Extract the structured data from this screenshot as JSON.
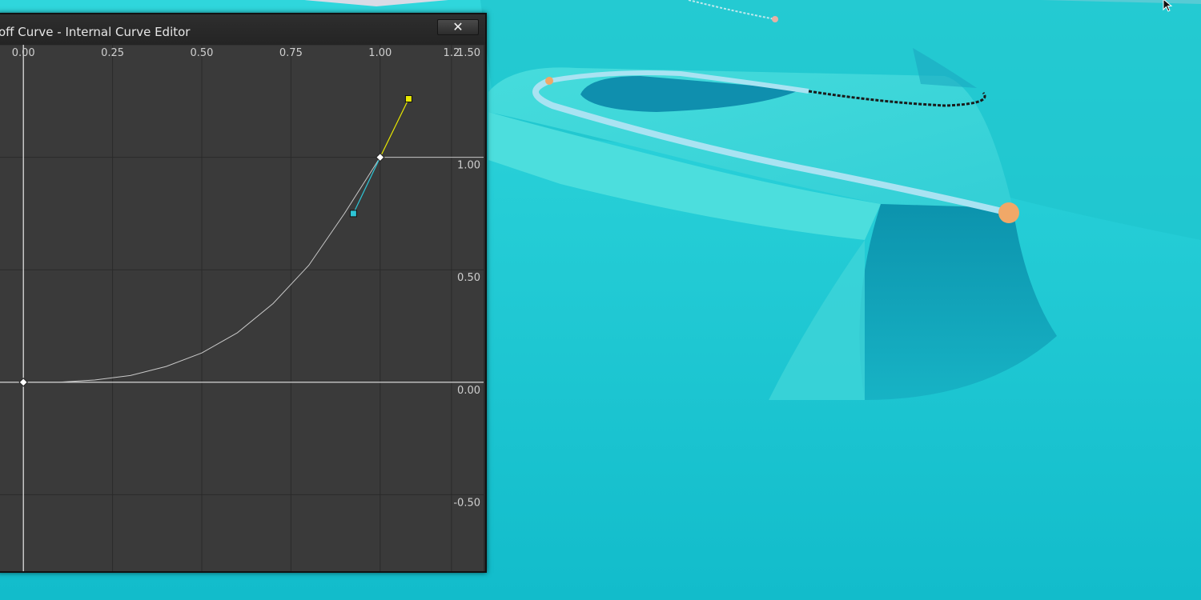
{
  "window": {
    "title": "off Curve - Internal Curve Editor",
    "close_icon": "close-x-icon"
  },
  "chart_data": {
    "type": "line",
    "title": "",
    "xlabel": "",
    "ylabel": "",
    "x_ticks": [
      "0.00",
      "0.25",
      "0.50",
      "0.75",
      "1.00",
      "1.2"
    ],
    "y_ticks": [
      "1.50",
      "1.00",
      "0.50",
      "0.00",
      "-0.50"
    ],
    "xlim": [
      -0.07,
      1.29
    ],
    "ylim": [
      -0.84,
      1.5
    ],
    "series": [
      {
        "x": [
          0.0,
          0.1,
          0.2,
          0.3,
          0.4,
          0.5,
          0.6,
          0.7,
          0.8,
          0.9,
          1.0
        ],
        "y": [
          0.0,
          0.0,
          0.01,
          0.03,
          0.07,
          0.13,
          0.22,
          0.35,
          0.52,
          0.75,
          1.0
        ]
      }
    ],
    "keys": [
      {
        "x": 0.0,
        "y": 0.0
      },
      {
        "x": 1.0,
        "y": 1.0
      }
    ],
    "tangent_handles": {
      "arrive": {
        "x": 0.925,
        "y": 0.75
      },
      "leave": {
        "x": 1.08,
        "y": 1.26
      }
    },
    "colors": {
      "background": "#3a3a3a",
      "grid": "#2a2a2a",
      "axis": "#e8e8e8",
      "curve": "#c9c9c9",
      "arrive_tangent": "#2ec5d6",
      "leave_tangent": "#e8e800",
      "tick_label": "#cfcfcf"
    }
  },
  "viewport": {
    "cursor_icon": "mouse-pointer-icon",
    "spline_icon": "landscape-spline",
    "control_point_color": "#f0a868"
  }
}
